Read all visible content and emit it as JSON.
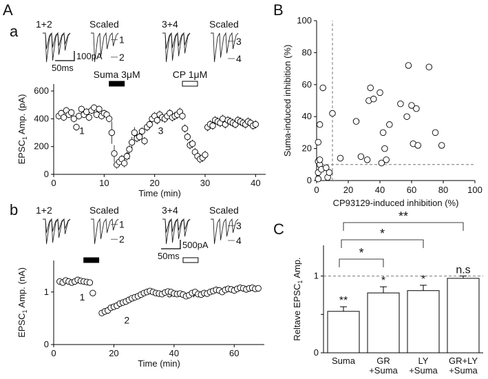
{
  "figure": {
    "panel_A": "A",
    "panel_a": "a",
    "panel_b": "b",
    "panel_B": "B",
    "panel_C": "C"
  },
  "chart_data": [
    {
      "id": "Aa-timecourse",
      "type": "scatter",
      "xlabel": "Time (min)",
      "ylabel": "EPSC",
      "ylabel_sub": "1",
      "ylabel_tail": " Amp. (pA)",
      "xlim": [
        0,
        42
      ],
      "ylim": [
        0,
        650
      ],
      "xticks": [
        0,
        10,
        20,
        30,
        40
      ],
      "yticks": [
        0,
        200,
        400,
        600
      ],
      "grid": false,
      "bars": [
        {
          "label": "Suma 3μM",
          "x": [
            11,
            14
          ],
          "fill": "#000000"
        },
        {
          "label": "CP 1μM",
          "x": [
            25.5,
            28.5
          ],
          "fill": "#ffffff"
        }
      ],
      "annotations": [
        {
          "text": "1",
          "x": 5.6,
          "y": 290
        },
        {
          "text": "2",
          "x": 14.6,
          "y": 110
        },
        {
          "text": "3",
          "x": 21.2,
          "y": 290
        },
        {
          "text": "4",
          "x": 29.7,
          "y": 110
        }
      ],
      "series": [
        {
          "x": [
            1,
            1.5,
            2,
            2.5,
            3,
            3.5,
            4,
            4.5,
            5,
            5.5,
            6,
            6.5,
            7,
            7.5,
            8,
            8.5,
            9,
            9.5,
            10,
            10.5,
            11,
            11.5,
            12,
            12.5,
            13,
            13.5,
            14,
            14.5,
            15,
            15.5,
            16,
            16.5,
            17,
            17.5,
            18,
            18.5,
            19,
            19.5,
            20,
            20.5,
            21,
            21.5,
            22,
            22.5,
            23,
            23.5,
            24,
            24.5,
            25,
            25.5,
            26,
            26.5,
            27,
            27.5,
            28,
            28.5,
            29,
            29.5,
            30,
            30.5,
            31,
            31.5,
            32,
            32.5,
            33,
            33.5,
            34,
            34.5,
            35,
            35.5,
            36,
            36.5,
            37,
            37.5,
            38,
            38.5,
            39,
            39.5,
            40
          ],
          "y": [
            420,
            440,
            410,
            460,
            430,
            445,
            400,
            340,
            420,
            470,
            430,
            450,
            410,
            460,
            480,
            430,
            470,
            420,
            440,
            430,
            400,
            300,
            150,
            70,
            90,
            110,
            80,
            130,
            180,
            230,
            300,
            260,
            270,
            310,
            240,
            340,
            360,
            400,
            420,
            390,
            430,
            410,
            400,
            420,
            440,
            410,
            420,
            430,
            450,
            420,
            330,
            270,
            210,
            220,
            160,
            130,
            110,
            120,
            140,
            340,
            360,
            350,
            390,
            380,
            370,
            400,
            360,
            390,
            380,
            370,
            360,
            390,
            380,
            370,
            360,
            380,
            370,
            350,
            360
          ],
          "err": [
            25,
            25,
            25,
            25,
            25,
            25,
            25,
            25,
            25,
            25,
            25,
            25,
            25,
            25,
            25,
            25,
            25,
            25,
            25,
            25,
            25,
            80,
            60,
            30,
            30,
            30,
            30,
            30,
            30,
            40,
            40,
            30,
            30,
            30,
            30,
            30,
            30,
            30,
            30,
            30,
            30,
            30,
            30,
            30,
            30,
            30,
            30,
            30,
            30,
            30,
            30,
            30,
            30,
            30,
            30,
            30,
            30,
            30,
            30,
            30,
            30,
            30,
            30,
            30,
            30,
            30,
            30,
            30,
            30,
            30,
            30,
            30,
            30,
            30,
            30,
            30,
            30,
            30,
            30
          ]
        }
      ]
    },
    {
      "id": "Ab-timecourse",
      "type": "scatter",
      "xlabel": "Time (min)",
      "ylabel": "EPSC",
      "ylabel_sub": "1",
      "ylabel_tail": " Amp. (nA)",
      "xlim": [
        0,
        70
      ],
      "ylim": [
        0,
        1.6
      ],
      "xticks": [
        0,
        20,
        40,
        60
      ],
      "yticks": [
        0,
        1
      ],
      "grid": false,
      "bars": [
        {
          "label": "",
          "x": [
            10,
            15
          ],
          "fill": "#000000"
        },
        {
          "label": "",
          "x": [
            43,
            48
          ],
          "fill": "#ffffff"
        }
      ],
      "annotations": [
        {
          "text": "1",
          "x": 9.5,
          "y": 0.84
        },
        {
          "text": "2",
          "x": 24.3,
          "y": 0.4
        },
        {
          "text": "3",
          "x": 38.5,
          "y": 0.9
        },
        {
          "text": "4",
          "x": 46.2,
          "y": 0.9
        }
      ],
      "series": [
        {
          "x": [
            2,
            3,
            4,
            5,
            6,
            7,
            8,
            9,
            10,
            11,
            12,
            13,
            16,
            17,
            18,
            19,
            20,
            21,
            22,
            23,
            24,
            25,
            26,
            27,
            28,
            29,
            30,
            31,
            32,
            33,
            34,
            35,
            36,
            37,
            38,
            39,
            40,
            41,
            42,
            43,
            44,
            45,
            46,
            47,
            48,
            49,
            50,
            51,
            52,
            53,
            54,
            55,
            56,
            57,
            58,
            59,
            60,
            61,
            62,
            63,
            64,
            65,
            66,
            67,
            68
          ],
          "y": [
            1.2,
            1.18,
            1.22,
            1.2,
            1.18,
            1.2,
            1.23,
            1.21,
            1.2,
            1.19,
            1.18,
            0.98,
            0.6,
            0.63,
            0.65,
            0.7,
            0.72,
            0.74,
            0.78,
            0.8,
            0.82,
            0.85,
            0.88,
            0.9,
            0.92,
            0.95,
            0.98,
            1.0,
            1.02,
            1.0,
            0.98,
            0.97,
            0.96,
            0.99,
            1.01,
            1.0,
            0.97,
            0.96,
            0.97,
            0.95,
            0.92,
            0.94,
            0.98,
            1.0,
            0.96,
            0.95,
            0.98,
            0.97,
            1.0,
            1.02,
            1.04,
            1.03,
            1.0,
            1.04,
            1.06,
            1.05,
            1.03,
            1.06,
            1.08,
            1.07,
            1.05,
            1.07,
            1.08,
            1.06,
            1.07
          ],
          "err": [
            0.03,
            0.03,
            0.03,
            0.03,
            0.03,
            0.03,
            0.03,
            0.03,
            0.03,
            0.03,
            0.03,
            0.06,
            0.03,
            0.03,
            0.03,
            0.03,
            0.03,
            0.03,
            0.03,
            0.03,
            0.03,
            0.03,
            0.03,
            0.03,
            0.03,
            0.03,
            0.03,
            0.03,
            0.03,
            0.03,
            0.03,
            0.03,
            0.03,
            0.03,
            0.03,
            0.03,
            0.03,
            0.03,
            0.03,
            0.03,
            0.03,
            0.03,
            0.03,
            0.03,
            0.03,
            0.03,
            0.03,
            0.03,
            0.03,
            0.03,
            0.03,
            0.03,
            0.03,
            0.03,
            0.03,
            0.03,
            0.03,
            0.03,
            0.03,
            0.03,
            0.03,
            0.03,
            0.03,
            0.03,
            0.03
          ]
        }
      ]
    },
    {
      "id": "B-scatter",
      "type": "scatter",
      "xlabel": "CP93129-induced inhibition (%)",
      "ylabel": "Suma-induced inhibition (%)",
      "xlim": [
        0,
        100
      ],
      "ylim": [
        0,
        100
      ],
      "xticks": [
        0,
        20,
        40,
        60,
        80,
        100
      ],
      "yticks": [
        0,
        20,
        40,
        60,
        80,
        100
      ],
      "grid": false,
      "threshold_x": 10,
      "threshold_y": 10,
      "x": [
        1,
        1,
        1,
        1,
        2,
        2,
        2,
        3,
        4,
        6,
        7,
        8,
        10,
        15,
        25,
        28,
        32,
        33,
        34,
        36,
        40,
        41,
        42,
        43,
        44,
        46,
        53,
        57,
        58,
        60,
        61,
        63,
        64,
        71,
        75,
        79
      ],
      "y": [
        1,
        5,
        12,
        24,
        35,
        10,
        13,
        7,
        58,
        8,
        2,
        5,
        42,
        14,
        37,
        15,
        13,
        50,
        58,
        51,
        55,
        11,
        30,
        20,
        13,
        35,
        48,
        40,
        72,
        47,
        23,
        45,
        22,
        71,
        30,
        22
      ]
    },
    {
      "id": "C-bars",
      "type": "bar",
      "xlabel": "",
      "ylabel": "Reltave EPSC",
      "ylabel_sub": "1",
      "ylabel_tail": " Amp.",
      "ylim": [
        0,
        1.4
      ],
      "yticks": [
        0,
        0.5,
        1
      ],
      "ytick_labels": [
        "0",
        "",
        "1"
      ],
      "reference_line": 1,
      "categories": [
        [
          "Suma",
          ""
        ],
        [
          "GR",
          "+Suma"
        ],
        [
          "LY",
          "+Suma"
        ],
        [
          "GR+LY",
          "+Suma"
        ]
      ],
      "values": [
        0.54,
        0.78,
        0.81,
        0.97
      ],
      "errors": [
        0.06,
        0.08,
        0.07,
        0.03
      ],
      "bar_marks": [
        "**",
        "*",
        "*",
        "n.s"
      ],
      "comparisons": [
        {
          "from": 0,
          "to": 1,
          "label": "*"
        },
        {
          "from": 0,
          "to": 2,
          "label": "*"
        },
        {
          "from": 0,
          "to": 3,
          "label": "**"
        }
      ]
    }
  ],
  "traces": {
    "a": {
      "labels": [
        "1+2",
        "Scaled",
        "3+4",
        "Scaled"
      ],
      "trace_labels": [
        "1",
        "2",
        "3",
        "4"
      ],
      "scalebar_y": "100pA",
      "scalebar_x": "50ms"
    },
    "b": {
      "labels": [
        "1+2",
        "Scaled",
        "3+4",
        "Scaled"
      ],
      "trace_labels": [
        "1",
        "2",
        "3",
        "4"
      ],
      "scalebar_y": "500pA",
      "scalebar_x": "50ms"
    }
  }
}
